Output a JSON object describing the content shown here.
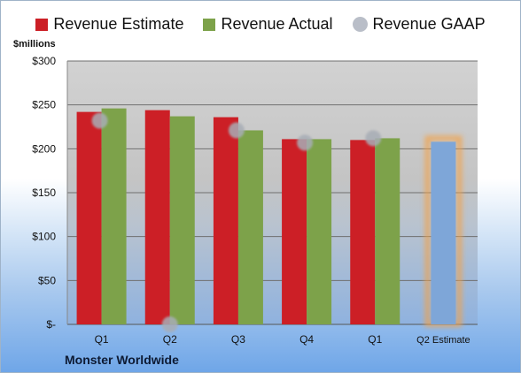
{
  "chart_data": {
    "type": "bar",
    "unit_label": "$millions",
    "company": "Monster Worldwide",
    "categories": [
      "Q1",
      "Q2",
      "Q3",
      "Q4",
      "Q1",
      "Q2 Estimate"
    ],
    "series": [
      {
        "name": "Revenue Estimate",
        "color": "#cc1f26",
        "values": [
          242,
          244,
          236,
          211,
          210,
          null
        ]
      },
      {
        "name": "Revenue Actual",
        "color": "#7da24a",
        "values": [
          246,
          237,
          221,
          211,
          212,
          208
        ]
      },
      {
        "name": "Revenue GAAP",
        "color": "#b9bec8",
        "type": "marker",
        "values": [
          232,
          0,
          221,
          207,
          212,
          null
        ]
      }
    ],
    "estimate_bar": {
      "category": "Q2 Estimate",
      "value": 208,
      "color": "#7ea6d8",
      "glow": "#f2a24a"
    },
    "yticks": [
      {
        "value": 0,
        "label": "$-"
      },
      {
        "value": 50,
        "label": "$50"
      },
      {
        "value": 100,
        "label": "$100"
      },
      {
        "value": 150,
        "label": "$150"
      },
      {
        "value": 200,
        "label": "$200"
      },
      {
        "value": 250,
        "label": "$250"
      },
      {
        "value": 300,
        "label": "$300"
      }
    ],
    "ylim": [
      0,
      300
    ],
    "grid": true,
    "legend_position": "top"
  }
}
